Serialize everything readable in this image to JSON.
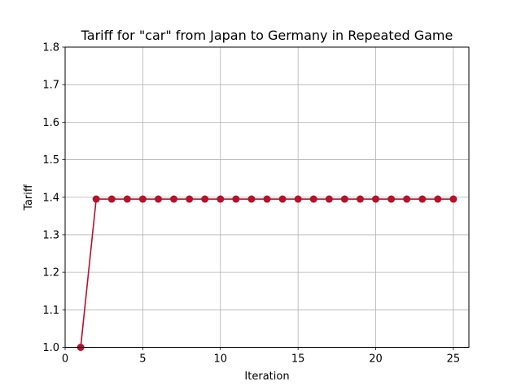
{
  "chart_data": {
    "type": "line",
    "title": "Tariff for \"car\" from Japan to Germany in Repeated Game",
    "xlabel": "Iteration",
    "ylabel": "Tariff",
    "xlim": [
      0,
      26
    ],
    "ylim": [
      1.0,
      1.8
    ],
    "xticks": [
      0,
      5,
      10,
      15,
      20,
      25
    ],
    "yticks": [
      1.0,
      1.1,
      1.2,
      1.3,
      1.4,
      1.5,
      1.6,
      1.7,
      1.8
    ],
    "xtick_labels": [
      "0",
      "5",
      "10",
      "15",
      "20",
      "25"
    ],
    "ytick_labels": [
      "1.0",
      "1.1",
      "1.2",
      "1.3",
      "1.4",
      "1.5",
      "1.6",
      "1.7",
      "1.8"
    ],
    "grid": true,
    "series": [
      {
        "color": "#b5122c",
        "marker": "circle",
        "x": [
          1,
          2,
          3,
          4,
          5,
          6,
          7,
          8,
          9,
          10,
          11,
          12,
          13,
          14,
          15,
          16,
          17,
          18,
          19,
          20,
          21,
          22,
          23,
          24,
          25
        ],
        "y": [
          1.0,
          1.395,
          1.395,
          1.395,
          1.395,
          1.395,
          1.395,
          1.395,
          1.395,
          1.395,
          1.395,
          1.395,
          1.395,
          1.395,
          1.395,
          1.395,
          1.395,
          1.395,
          1.395,
          1.395,
          1.395,
          1.395,
          1.395,
          1.395,
          1.395
        ]
      }
    ]
  }
}
